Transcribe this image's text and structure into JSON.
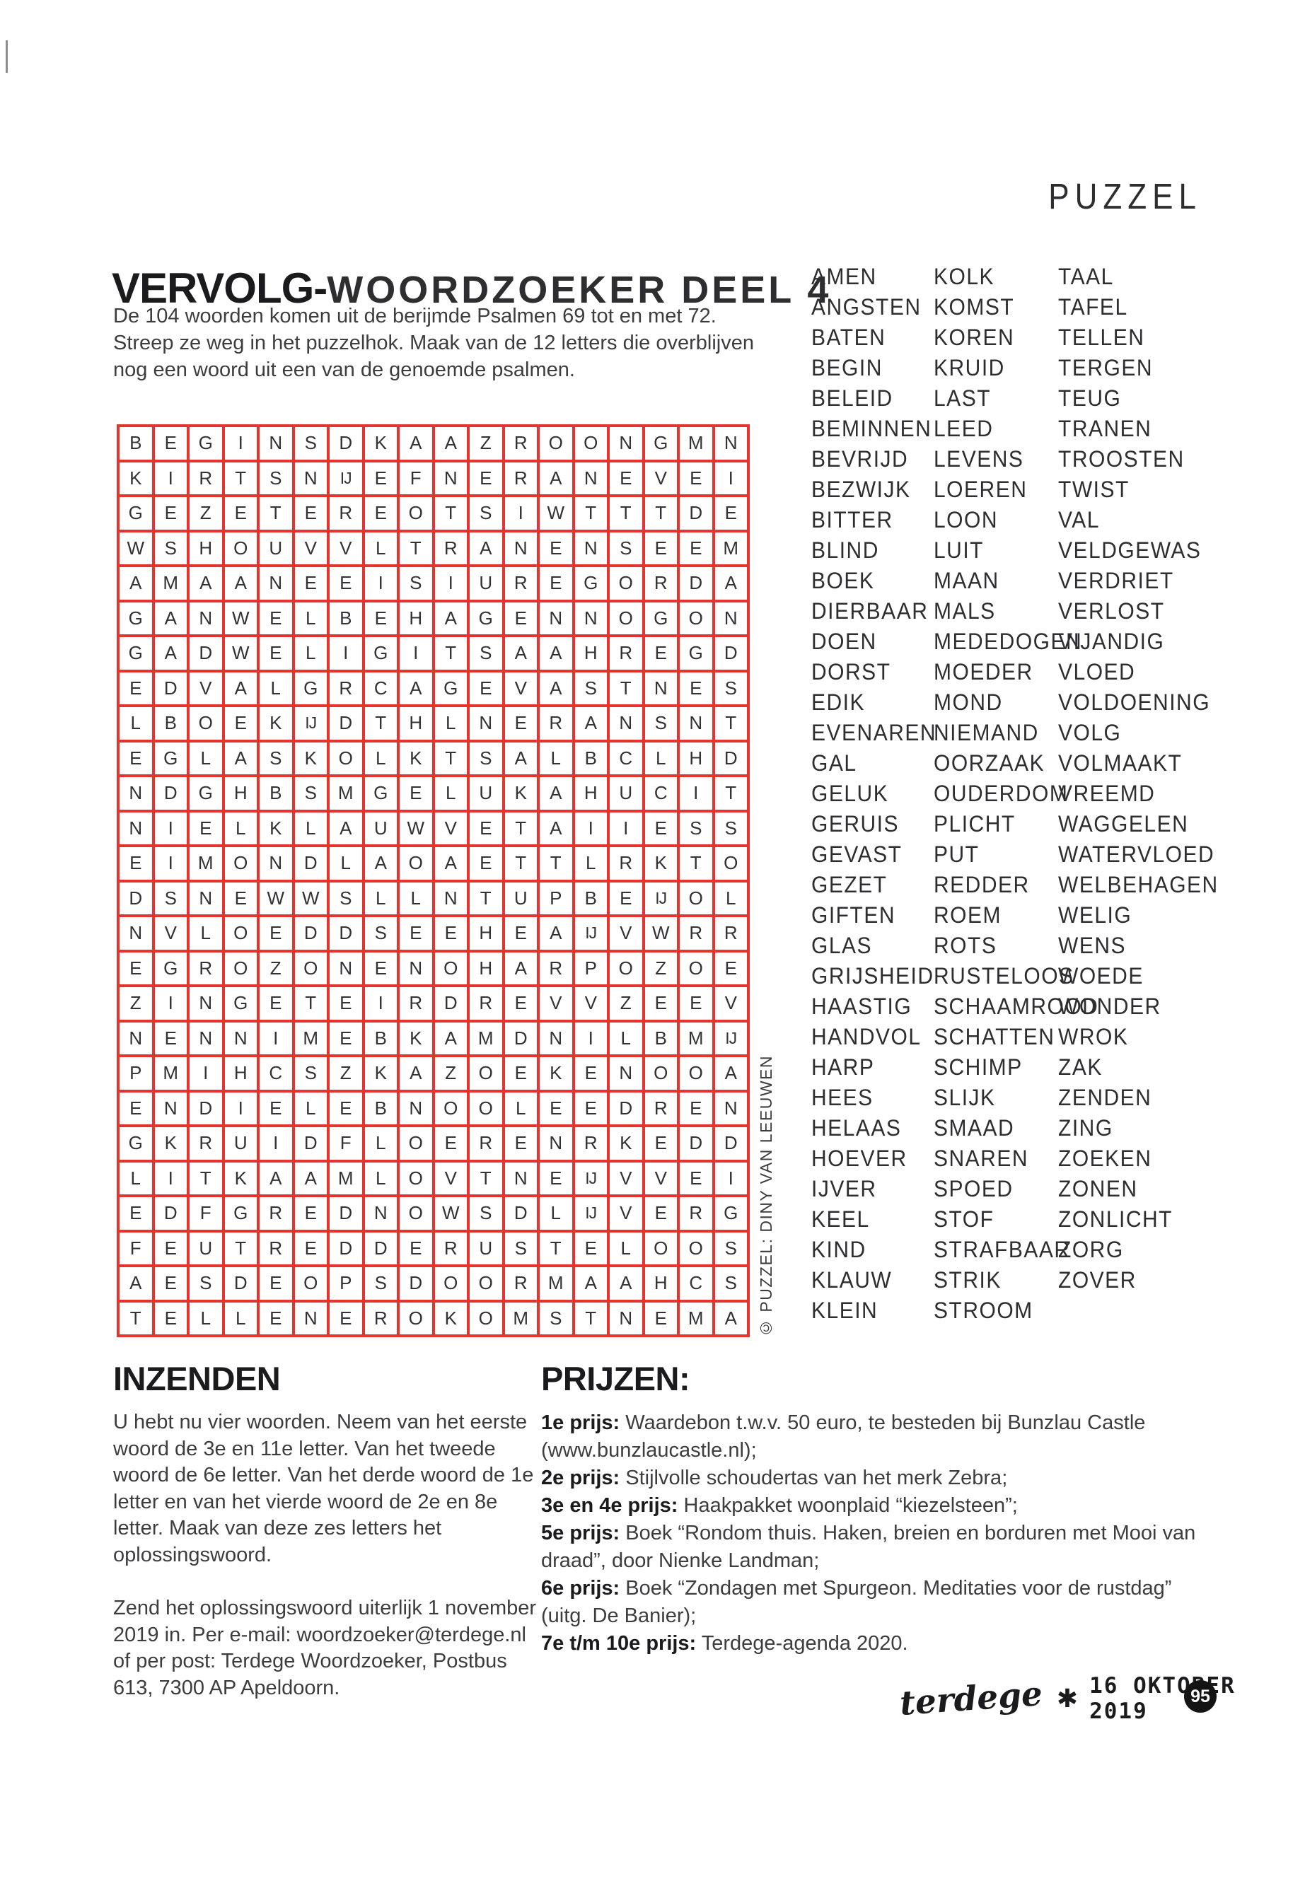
{
  "page": {
    "header": "PUZZEL",
    "page_number": "95",
    "footer_magazine": "terdege",
    "footer_asterisk": "✱",
    "footer_date": "16 OKTOBER 2019",
    "copyright_vertical": "© PUZZEL: DINY VAN LEEUWEN"
  },
  "title": {
    "bold": "VERVOLG-",
    "script": "WOORDZOEKER DEEL 4"
  },
  "intro": "De 104 woorden komen uit de berijmde Psalmen 69 tot en met 72. Streep ze weg in het puzzelhok. Maak van de 12 letters die overblijven nog een woord uit een van de genoemde psalmen.",
  "colors": {
    "grid_red": "#e5332d",
    "letter_dark": "#333335",
    "heading_black": "#1b1b1d"
  },
  "grid": {
    "columns": 18,
    "rows": [
      [
        "B",
        "E",
        "G",
        "I",
        "N",
        "S",
        "D",
        "K",
        "A",
        "A",
        "Z",
        "R",
        "O",
        "O",
        "N",
        "G",
        "M",
        "N"
      ],
      [
        "K",
        "I",
        "R",
        "T",
        "S",
        "N",
        "IJ",
        "E",
        "F",
        "N",
        "E",
        "R",
        "A",
        "N",
        "E",
        "V",
        "E",
        "I"
      ],
      [
        "G",
        "E",
        "Z",
        "E",
        "T",
        "E",
        "R",
        "E",
        "O",
        "T",
        "S",
        "I",
        "W",
        "T",
        "T",
        "T",
        "D",
        "E"
      ],
      [
        "W",
        "S",
        "H",
        "O",
        "U",
        "V",
        "V",
        "L",
        "T",
        "R",
        "A",
        "N",
        "E",
        "N",
        "S",
        "E",
        "E",
        "M"
      ],
      [
        "A",
        "M",
        "A",
        "A",
        "N",
        "E",
        "E",
        "I",
        "S",
        "I",
        "U",
        "R",
        "E",
        "G",
        "O",
        "R",
        "D",
        "A"
      ],
      [
        "G",
        "A",
        "N",
        "W",
        "E",
        "L",
        "B",
        "E",
        "H",
        "A",
        "G",
        "E",
        "N",
        "N",
        "O",
        "G",
        "O",
        "N"
      ],
      [
        "G",
        "A",
        "D",
        "W",
        "E",
        "L",
        "I",
        "G",
        "I",
        "T",
        "S",
        "A",
        "A",
        "H",
        "R",
        "E",
        "G",
        "D"
      ],
      [
        "E",
        "D",
        "V",
        "A",
        "L",
        "G",
        "R",
        "C",
        "A",
        "G",
        "E",
        "V",
        "A",
        "S",
        "T",
        "N",
        "E",
        "S"
      ],
      [
        "L",
        "B",
        "O",
        "E",
        "K",
        "IJ",
        "D",
        "T",
        "H",
        "L",
        "N",
        "E",
        "R",
        "A",
        "N",
        "S",
        "N",
        "T"
      ],
      [
        "E",
        "G",
        "L",
        "A",
        "S",
        "K",
        "O",
        "L",
        "K",
        "T",
        "S",
        "A",
        "L",
        "B",
        "C",
        "L",
        "H",
        "D"
      ],
      [
        "N",
        "D",
        "G",
        "H",
        "B",
        "S",
        "M",
        "G",
        "E",
        "L",
        "U",
        "K",
        "A",
        "H",
        "U",
        "C",
        "I",
        "T"
      ],
      [
        "N",
        "I",
        "E",
        "L",
        "K",
        "L",
        "A",
        "U",
        "W",
        "V",
        "E",
        "T",
        "A",
        "I",
        "I",
        "E",
        "S",
        "S"
      ],
      [
        "E",
        "I",
        "M",
        "O",
        "N",
        "D",
        "L",
        "A",
        "O",
        "A",
        "E",
        "T",
        "T",
        "L",
        "R",
        "K",
        "T",
        "O"
      ],
      [
        "D",
        "S",
        "N",
        "E",
        "W",
        "W",
        "S",
        "L",
        "L",
        "N",
        "T",
        "U",
        "P",
        "B",
        "E",
        "IJ",
        "O",
        "L"
      ],
      [
        "N",
        "V",
        "L",
        "O",
        "E",
        "D",
        "D",
        "S",
        "E",
        "E",
        "H",
        "E",
        "A",
        "IJ",
        "V",
        "W",
        "R",
        "R"
      ],
      [
        "E",
        "G",
        "R",
        "O",
        "Z",
        "O",
        "N",
        "E",
        "N",
        "O",
        "H",
        "A",
        "R",
        "P",
        "O",
        "Z",
        "O",
        "E"
      ],
      [
        "Z",
        "I",
        "N",
        "G",
        "E",
        "T",
        "E",
        "I",
        "R",
        "D",
        "R",
        "E",
        "V",
        "V",
        "Z",
        "E",
        "E",
        "V"
      ],
      [
        "N",
        "E",
        "N",
        "N",
        "I",
        "M",
        "E",
        "B",
        "K",
        "A",
        "M",
        "D",
        "N",
        "I",
        "L",
        "B",
        "M",
        "IJ"
      ],
      [
        "P",
        "M",
        "I",
        "H",
        "C",
        "S",
        "Z",
        "K",
        "A",
        "Z",
        "O",
        "E",
        "K",
        "E",
        "N",
        "O",
        "O",
        "A"
      ],
      [
        "E",
        "N",
        "D",
        "I",
        "E",
        "L",
        "E",
        "B",
        "N",
        "O",
        "O",
        "L",
        "E",
        "E",
        "D",
        "R",
        "E",
        "N"
      ],
      [
        "G",
        "K",
        "R",
        "U",
        "I",
        "D",
        "F",
        "L",
        "O",
        "E",
        "R",
        "E",
        "N",
        "R",
        "K",
        "E",
        "D",
        "D"
      ],
      [
        "L",
        "I",
        "T",
        "K",
        "A",
        "A",
        "M",
        "L",
        "O",
        "V",
        "T",
        "N",
        "E",
        "IJ",
        "V",
        "V",
        "E",
        "I"
      ],
      [
        "E",
        "D",
        "F",
        "G",
        "R",
        "E",
        "D",
        "N",
        "O",
        "W",
        "S",
        "D",
        "L",
        "IJ",
        "V",
        "E",
        "R",
        "G"
      ],
      [
        "F",
        "E",
        "U",
        "T",
        "R",
        "E",
        "D",
        "D",
        "E",
        "R",
        "U",
        "S",
        "T",
        "E",
        "L",
        "O",
        "O",
        "S"
      ],
      [
        "A",
        "E",
        "S",
        "D",
        "E",
        "O",
        "P",
        "S",
        "D",
        "O",
        "O",
        "R",
        "M",
        "A",
        "A",
        "H",
        "C",
        "S"
      ],
      [
        "T",
        "E",
        "L",
        "L",
        "E",
        "N",
        "E",
        "R",
        "O",
        "K",
        "O",
        "M",
        "S",
        "T",
        "N",
        "E",
        "M",
        "A"
      ]
    ]
  },
  "word_list": {
    "columns": [
      [
        "AMEN",
        "ANGSTEN",
        "BATEN",
        "BEGIN",
        "BELEID",
        "BEMINNEN",
        "BEVRIJD",
        "BEZWIJK",
        "BITTER",
        "BLIND",
        "BOEK",
        "DIERBAAR",
        "DOEN",
        "DORST",
        "EDIK",
        "EVENAREN",
        "GAL",
        "GELUK",
        "GERUIS",
        "GEVAST",
        "GEZET",
        "GIFTEN",
        "GLAS",
        "GRIJSHEID",
        "HAASTIG",
        "HANDVOL",
        "HARP",
        "HEES",
        "HELAAS",
        "HOEVER",
        "IJVER",
        "KEEL",
        "KIND",
        "KLAUW",
        "KLEIN"
      ],
      [
        "KOLK",
        "KOMST",
        "KOREN",
        "KRUID",
        "LAST",
        "LEED",
        "LEVENS",
        "LOEREN",
        "LOON",
        "LUIT",
        "MAAN",
        "MALS",
        "MEDEDOGEN",
        "MOEDER",
        "MOND",
        "NIEMAND",
        "OORZAAK",
        "OUDERDOM",
        "PLICHT",
        "PUT",
        "REDDER",
        "ROEM",
        "ROTS",
        "RUSTELOOS",
        "SCHAAMROOD",
        "SCHATTEN",
        "SCHIMP",
        "SLIJK",
        "SMAAD",
        "SNAREN",
        "SPOED",
        "STOF",
        "STRAFBAAR",
        "STRIK",
        "STROOM"
      ],
      [
        "TAAL",
        "TAFEL",
        "TELLEN",
        "TERGEN",
        "TEUG",
        "TRANEN",
        "TROOSTEN",
        "TWIST",
        "VAL",
        "VELDGEWAS",
        "VERDRIET",
        "VERLOST",
        "VIJANDIG",
        "VLOED",
        "VOLDOENING",
        "VOLG",
        "VOLMAAKT",
        "VREEMD",
        "WAGGELEN",
        "WATERVLOED",
        "WELBEHAGEN",
        "WELIG",
        "WENS",
        "WOEDE",
        "WONDER",
        "WROK",
        "ZAK",
        "ZENDEN",
        "ZING",
        "ZOEKEN",
        "ZONEN",
        "ZONLICHT",
        "ZORG",
        "ZOVER"
      ]
    ]
  },
  "inzenden": {
    "heading": "INZENDEN",
    "paragraphs": [
      "U hebt nu vier woorden. Neem van het eerste woord de 3e en 11e letter. Van het tweede woord de 6e letter. Van het derde woord de 1e letter en van het vierde woord de 2e en 8e letter. Maak van deze zes letters het oplossingswoord.",
      "Zend het oplossingswoord uiterlijk 1 november 2019 in. Per e-mail: woordzoeker@terdege.nl of per post: Terdege Woordzoeker, Postbus 613, 7300 AP Apeldoorn."
    ]
  },
  "prijzen": {
    "heading": "PRIJZEN:",
    "items": [
      {
        "label": "1e prijs:",
        "text": " Waardebon t.w.v. 50 euro, te besteden bij Bunzlau Castle (www.bunzlaucastle.nl);"
      },
      {
        "label": "2e prijs:",
        "text": " Stijlvolle schoudertas van het merk Zebra;"
      },
      {
        "label": "3e en 4e prijs:",
        "text": " Haakpakket woonplaid “kiezelsteen”;"
      },
      {
        "label": "5e prijs:",
        "text": " Boek “Rondom thuis. Haken, breien en borduren met Mooi van draad”, door Nienke Landman;"
      },
      {
        "label": "6e prijs:",
        "text": " Boek “Zondagen met Spurgeon. Meditaties voor de rustdag” (uitg. De Banier);"
      },
      {
        "label": "7e t/m 10e prijs:",
        "text": " Terdege-agenda 2020."
      }
    ]
  }
}
